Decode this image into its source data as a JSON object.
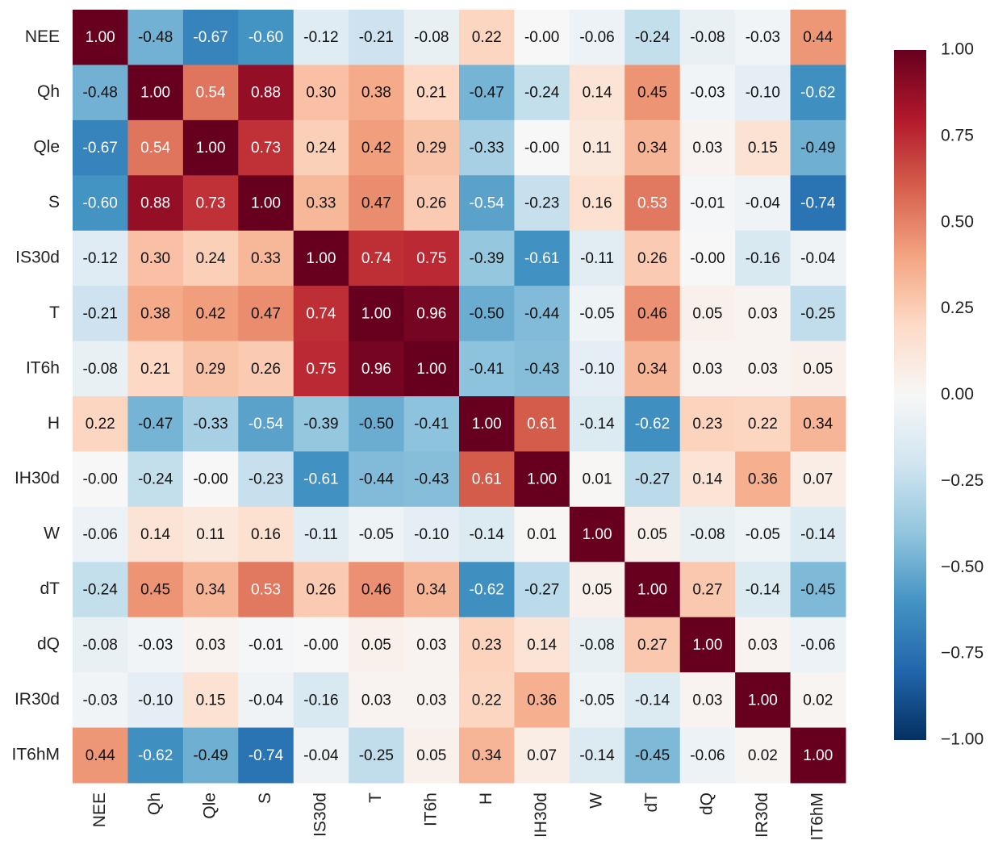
{
  "chart_data": {
    "type": "heatmap",
    "x_categories": [
      "NEE",
      "Qh",
      "Qle",
      "S",
      "IS30d",
      "T",
      "IT6h",
      "H",
      "IH30d",
      "W",
      "dT",
      "dQ",
      "IR30d",
      "IT6hM"
    ],
    "y_categories": [
      "NEE",
      "Qh",
      "Qle",
      "S",
      "IS30d",
      "T",
      "IT6h",
      "H",
      "IH30d",
      "W",
      "dT",
      "dQ",
      "IR30d",
      "IT6hM"
    ],
    "values": [
      [
        1,
        -0.48,
        -0.67,
        -0.6,
        -0.12,
        -0.21,
        -0.08,
        0.22,
        0,
        -0.06,
        -0.24,
        -0.08,
        -0.03,
        0.44
      ],
      [
        -0.48,
        1,
        0.54,
        0.88,
        0.3,
        0.38,
        0.21,
        -0.47,
        -0.24,
        0.14,
        0.45,
        -0.03,
        -0.1,
        -0.62
      ],
      [
        -0.67,
        0.54,
        1,
        0.73,
        0.24,
        0.42,
        0.29,
        -0.33,
        0,
        0.11,
        0.34,
        0.03,
        0.15,
        -0.49
      ],
      [
        -0.6,
        0.88,
        0.73,
        1,
        0.33,
        0.47,
        0.26,
        -0.54,
        -0.23,
        0.16,
        0.53,
        -0.01,
        -0.04,
        -0.74
      ],
      [
        -0.12,
        0.3,
        0.24,
        0.33,
        1,
        0.74,
        0.75,
        -0.39,
        -0.61,
        -0.11,
        0.26,
        0,
        -0.16,
        -0.04
      ],
      [
        -0.21,
        0.38,
        0.42,
        0.47,
        0.74,
        1,
        0.96,
        -0.5,
        -0.44,
        -0.05,
        0.46,
        0.05,
        0.03,
        -0.25
      ],
      [
        -0.08,
        0.21,
        0.29,
        0.26,
        0.75,
        0.96,
        1,
        -0.41,
        -0.43,
        -0.1,
        0.34,
        0.03,
        0.03,
        0.05
      ],
      [
        0.22,
        -0.47,
        -0.33,
        -0.54,
        -0.39,
        -0.5,
        -0.41,
        1,
        0.61,
        -0.14,
        -0.62,
        0.23,
        0.22,
        0.34
      ],
      [
        0,
        -0.24,
        0,
        -0.23,
        -0.61,
        -0.44,
        -0.43,
        0.61,
        1,
        0.01,
        -0.27,
        0.14,
        0.36,
        0.07
      ],
      [
        -0.06,
        0.14,
        0.11,
        0.16,
        -0.11,
        -0.05,
        -0.1,
        -0.14,
        0.01,
        1,
        0.05,
        -0.08,
        -0.05,
        -0.14
      ],
      [
        -0.24,
        0.45,
        0.34,
        0.53,
        0.26,
        0.46,
        0.34,
        -0.62,
        -0.27,
        0.05,
        1,
        0.27,
        -0.14,
        -0.45
      ],
      [
        -0.08,
        -0.03,
        0.03,
        -0.01,
        0,
        0.05,
        0.03,
        0.23,
        0.14,
        -0.08,
        0.27,
        1,
        0.03,
        -0.06
      ],
      [
        -0.03,
        -0.1,
        0.15,
        -0.04,
        -0.16,
        0.03,
        0.03,
        0.22,
        0.36,
        -0.05,
        -0.14,
        0.03,
        1,
        0.02
      ],
      [
        0.44,
        -0.62,
        -0.49,
        -0.74,
        -0.04,
        -0.25,
        0.05,
        0.34,
        0.07,
        -0.14,
        -0.45,
        -0.06,
        0.02,
        1
      ]
    ],
    "value_labels": [
      [
        "1.00",
        "-0.48",
        "-0.67",
        "-0.60",
        "-0.12",
        "-0.21",
        "-0.08",
        "0.22",
        "-0.00",
        "-0.06",
        "-0.24",
        "-0.08",
        "-0.03",
        "0.44"
      ],
      [
        "-0.48",
        "1.00",
        "0.54",
        "0.88",
        "0.30",
        "0.38",
        "0.21",
        "-0.47",
        "-0.24",
        "0.14",
        "0.45",
        "-0.03",
        "-0.10",
        "-0.62"
      ],
      [
        "-0.67",
        "0.54",
        "1.00",
        "0.73",
        "0.24",
        "0.42",
        "0.29",
        "-0.33",
        "-0.00",
        "0.11",
        "0.34",
        "0.03",
        "0.15",
        "-0.49"
      ],
      [
        "-0.60",
        "0.88",
        "0.73",
        "1.00",
        "0.33",
        "0.47",
        "0.26",
        "-0.54",
        "-0.23",
        "0.16",
        "0.53",
        "-0.01",
        "-0.04",
        "-0.74"
      ],
      [
        "-0.12",
        "0.30",
        "0.24",
        "0.33",
        "1.00",
        "0.74",
        "0.75",
        "-0.39",
        "-0.61",
        "-0.11",
        "0.26",
        "-0.00",
        "-0.16",
        "-0.04"
      ],
      [
        "-0.21",
        "0.38",
        "0.42",
        "0.47",
        "0.74",
        "1.00",
        "0.96",
        "-0.50",
        "-0.44",
        "-0.05",
        "0.46",
        "0.05",
        "0.03",
        "-0.25"
      ],
      [
        "-0.08",
        "0.21",
        "0.29",
        "0.26",
        "0.75",
        "0.96",
        "1.00",
        "-0.41",
        "-0.43",
        "-0.10",
        "0.34",
        "0.03",
        "0.03",
        "0.05"
      ],
      [
        "0.22",
        "-0.47",
        "-0.33",
        "-0.54",
        "-0.39",
        "-0.50",
        "-0.41",
        "1.00",
        "0.61",
        "-0.14",
        "-0.62",
        "0.23",
        "0.22",
        "0.34"
      ],
      [
        "-0.00",
        "-0.24",
        "-0.00",
        "-0.23",
        "-0.61",
        "-0.44",
        "-0.43",
        "0.61",
        "1.00",
        "0.01",
        "-0.27",
        "0.14",
        "0.36",
        "0.07"
      ],
      [
        "-0.06",
        "0.14",
        "0.11",
        "0.16",
        "-0.11",
        "-0.05",
        "-0.10",
        "-0.14",
        "0.01",
        "1.00",
        "0.05",
        "-0.08",
        "-0.05",
        "-0.14"
      ],
      [
        "-0.24",
        "0.45",
        "0.34",
        "0.53",
        "0.26",
        "0.46",
        "0.34",
        "-0.62",
        "-0.27",
        "0.05",
        "1.00",
        "0.27",
        "-0.14",
        "-0.45"
      ],
      [
        "-0.08",
        "-0.03",
        "0.03",
        "-0.01",
        "-0.00",
        "0.05",
        "0.03",
        "0.23",
        "0.14",
        "-0.08",
        "0.27",
        "1.00",
        "0.03",
        "-0.06"
      ],
      [
        "-0.03",
        "-0.10",
        "0.15",
        "-0.04",
        "-0.16",
        "0.03",
        "0.03",
        "0.22",
        "0.36",
        "-0.05",
        "-0.14",
        "0.03",
        "1.00",
        "0.02"
      ],
      [
        "0.44",
        "-0.62",
        "-0.49",
        "-0.74",
        "-0.04",
        "-0.25",
        "0.05",
        "0.34",
        "0.07",
        "-0.14",
        "-0.45",
        "-0.06",
        "0.02",
        "1.00"
      ]
    ],
    "zlim": [
      -1,
      1
    ],
    "zticks": [
      {
        "value": 1,
        "label": "1.00"
      },
      {
        "value": 0.75,
        "label": "0.75"
      },
      {
        "value": 0.5,
        "label": "0.50"
      },
      {
        "value": 0.25,
        "label": "0.25"
      },
      {
        "value": 0,
        "label": "0.00"
      },
      {
        "value": -0.25,
        "label": "−0.25"
      },
      {
        "value": -0.5,
        "label": "−0.50"
      },
      {
        "value": -0.75,
        "label": "−0.75"
      },
      {
        "value": -1,
        "label": "−1.00"
      }
    ],
    "colorscale": [
      "#053061",
      "#2166ac",
      "#4393c3",
      "#92c5de",
      "#d1e5f0",
      "#f7f7f7",
      "#fddbc7",
      "#f4a582",
      "#d6604d",
      "#b2182b",
      "#67001f"
    ]
  }
}
